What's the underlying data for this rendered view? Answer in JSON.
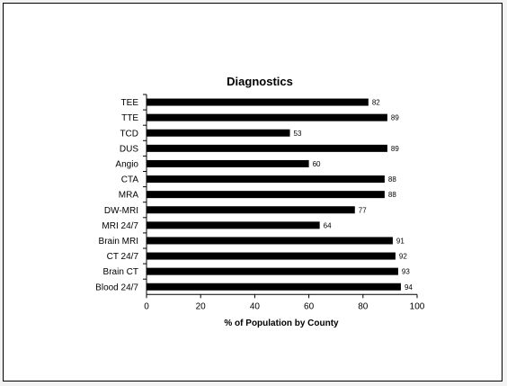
{
  "chart_data": {
    "type": "bar",
    "orientation": "horizontal",
    "title": "Diagnostics",
    "xlabel": "% of Population by County",
    "ylabel": "",
    "categories": [
      "TEE",
      "TTE",
      "TCD",
      "DUS",
      "Angio",
      "CTA",
      "MRA",
      "DW-MRI",
      "MRI 24/7",
      "Brain MRI",
      "CT 24/7",
      "Brain CT",
      "Blood 24/7"
    ],
    "values": [
      82,
      89,
      53,
      89,
      60,
      88,
      88,
      77,
      64,
      91,
      92,
      93,
      94
    ],
    "xlim": [
      0,
      100
    ],
    "xticks": [
      0,
      20,
      40,
      60,
      80,
      100
    ],
    "grid": false,
    "legend": "none",
    "bar_color": "#000000"
  }
}
